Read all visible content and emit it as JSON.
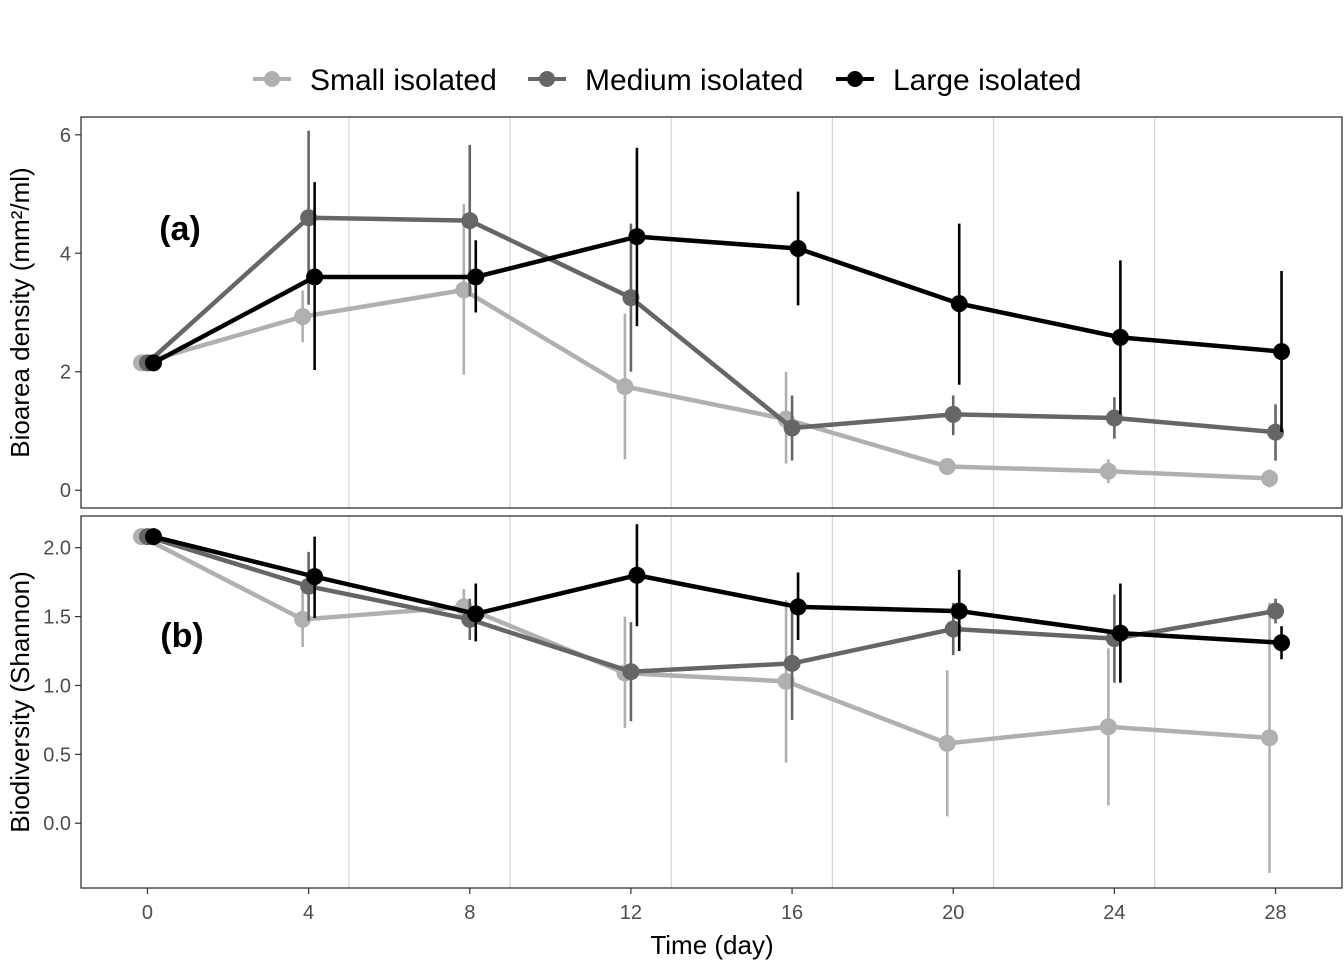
{
  "legend": {
    "position": "top",
    "entries": [
      {
        "label": "Small isolated",
        "color": "#b0b0b0"
      },
      {
        "label": "Medium isolated",
        "color": "#666666"
      },
      {
        "label": "Large isolated",
        "color": "#000000"
      }
    ]
  },
  "shared_x": {
    "label": "Time (day)",
    "ticks": [
      "0",
      "4",
      "8",
      "12",
      "16",
      "20",
      "24",
      "28"
    ],
    "tick_values": [
      0,
      4,
      8,
      12,
      16,
      20,
      24,
      28
    ],
    "range": [
      -1.65,
      29.65
    ],
    "vertical_separators": [
      5,
      9,
      13,
      17,
      21,
      25
    ]
  },
  "chart_data": [
    {
      "type": "line",
      "panel_label": "(a)",
      "ylabel": "Bioarea density (mm²/ml)",
      "ylim": [
        -0.3,
        6.3
      ],
      "yticks": [
        "0",
        "2",
        "4",
        "6"
      ],
      "ytick_values": [
        0,
        2,
        4,
        6
      ],
      "x": [
        0,
        4,
        8,
        12,
        16,
        20,
        24,
        28
      ],
      "grid": false,
      "series": [
        {
          "name": "Small isolated",
          "color": "#b0b0b0",
          "values": [
            2.15,
            2.93,
            3.38,
            1.75,
            1.2,
            0.4,
            0.32,
            0.2
          ],
          "error_low": [
            2.15,
            2.5,
            1.95,
            0.52,
            0.45,
            0.38,
            0.12,
            0.05
          ],
          "error_high": [
            2.15,
            3.37,
            4.83,
            2.98,
            2.0,
            0.46,
            0.52,
            0.35
          ]
        },
        {
          "name": "Medium isolated",
          "color": "#666666",
          "values": [
            2.15,
            4.6,
            4.55,
            3.25,
            1.05,
            1.28,
            1.22,
            0.98
          ],
          "error_low": [
            2.15,
            3.13,
            3.27,
            2.0,
            0.5,
            0.93,
            0.87,
            0.5
          ],
          "error_high": [
            2.15,
            6.07,
            5.83,
            4.5,
            1.6,
            1.6,
            1.57,
            1.45
          ]
        },
        {
          "name": "Large isolated",
          "color": "#000000",
          "values": [
            2.15,
            3.6,
            3.6,
            4.28,
            4.08,
            3.15,
            2.58,
            2.34
          ],
          "error_low": [
            2.15,
            2.03,
            3.0,
            2.77,
            3.12,
            1.78,
            1.28,
            0.98
          ],
          "error_high": [
            2.15,
            5.2,
            4.22,
            5.78,
            5.04,
            4.5,
            3.88,
            3.7
          ]
        }
      ]
    },
    {
      "type": "line",
      "panel_label": "(b)",
      "ylabel": "Biodiversity (Shannon)",
      "ylim": [
        -0.47,
        2.23
      ],
      "yticks": [
        "0.0",
        "0.5",
        "1.0",
        "1.5",
        "2.0"
      ],
      "ytick_values": [
        0,
        0.5,
        1.0,
        1.5,
        2.0
      ],
      "x": [
        0,
        4,
        8,
        12,
        16,
        20,
        24,
        28
      ],
      "grid": false,
      "series": [
        {
          "name": "Small isolated",
          "color": "#b0b0b0",
          "values": [
            2.08,
            1.48,
            1.57,
            1.09,
            1.03,
            0.58,
            0.7,
            0.62
          ],
          "error_low": [
            2.08,
            1.28,
            1.45,
            0.69,
            0.44,
            0.05,
            0.13,
            -0.36
          ],
          "error_high": [
            2.08,
            1.68,
            1.7,
            1.5,
            1.62,
            1.11,
            1.27,
            1.6
          ]
        },
        {
          "name": "Medium isolated",
          "color": "#666666",
          "values": [
            2.08,
            1.72,
            1.48,
            1.1,
            1.16,
            1.41,
            1.34,
            1.54
          ],
          "error_low": [
            2.08,
            1.47,
            1.33,
            0.74,
            0.75,
            1.22,
            1.02,
            1.45
          ],
          "error_high": [
            2.08,
            1.97,
            1.63,
            1.46,
            1.57,
            1.6,
            1.66,
            1.63
          ]
        },
        {
          "name": "Large isolated",
          "color": "#000000",
          "values": [
            2.08,
            1.79,
            1.52,
            1.8,
            1.57,
            1.54,
            1.38,
            1.31
          ],
          "error_low": [
            2.08,
            1.49,
            1.32,
            1.43,
            1.33,
            1.25,
            1.02,
            1.19
          ],
          "error_high": [
            2.08,
            2.08,
            1.74,
            2.17,
            1.82,
            1.84,
            1.74,
            1.43
          ]
        }
      ]
    }
  ]
}
